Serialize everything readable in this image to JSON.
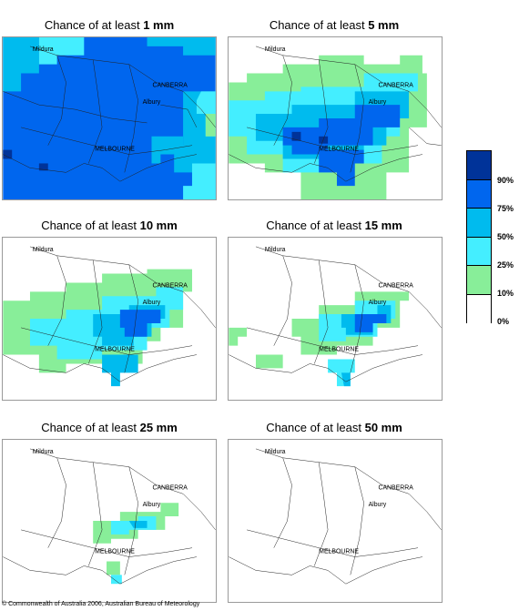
{
  "colors": {
    "c90": "#003399",
    "c75": "#0066ee",
    "c50": "#00bbee",
    "c25": "#44eeff",
    "c10": "#88ee99",
    "c0": "#ffffff"
  },
  "panels": [
    {
      "prefix": "Chance of at least ",
      "amount": "1 mm"
    },
    {
      "prefix": "Chance of at least ",
      "amount": "5 mm"
    },
    {
      "prefix": "Chance of at least ",
      "amount": "10 mm"
    },
    {
      "prefix": "Chance of at least ",
      "amount": "15 mm"
    },
    {
      "prefix": "Chance of at least ",
      "amount": "25 mm"
    },
    {
      "prefix": "Chance of at least ",
      "amount": "50 mm"
    }
  ],
  "cities": {
    "mildura": "Mildura",
    "canberra": "CANBERRA",
    "albury": "Albury",
    "melbourne": "MELBOURNE"
  },
  "legend": {
    "labels": [
      "90%",
      "75%",
      "50%",
      "25%",
      "10%",
      "0%"
    ]
  },
  "copyright": "© Commonwealth of Australia 2006, Australian Bureau of Meteorology"
}
